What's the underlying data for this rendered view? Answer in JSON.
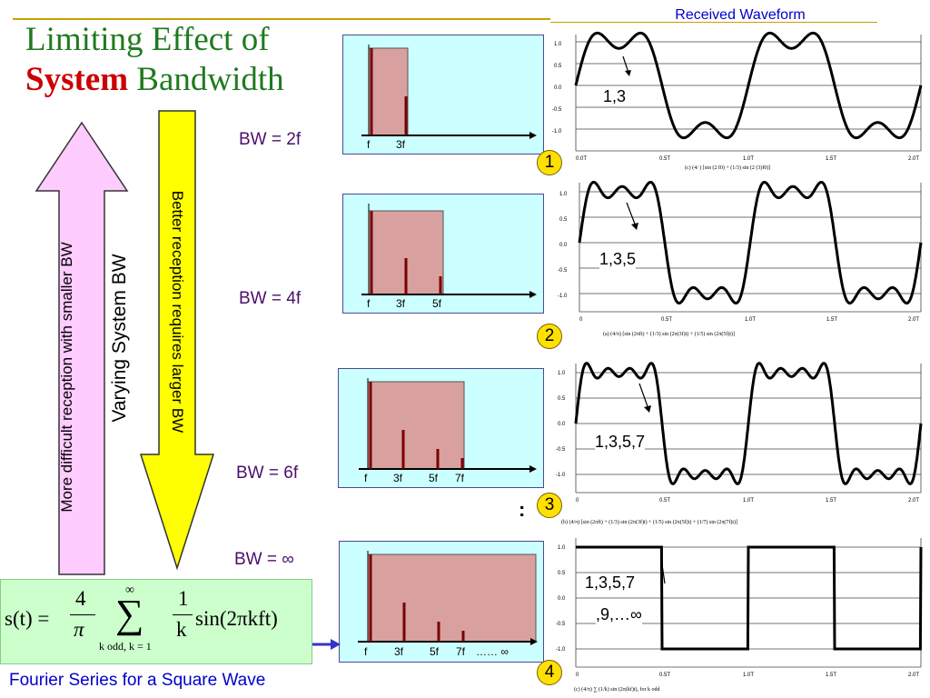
{
  "title": {
    "line1": "Limiting Effect of",
    "line2_bold": "System",
    "line2_rest": " Bandwidth"
  },
  "received_label": "Received Waveform",
  "arrows": {
    "left_text": "More difficult reception with smaller BW",
    "middle_text": "Varying System BW",
    "right_text": "Better reception requires larger BW",
    "left_color": "#ffccff",
    "right_color": "#ffff00"
  },
  "panels": [
    {
      "bw": "BW = 2f",
      "badge": "1",
      "harmonics": "1,3",
      "tick_labels": [
        "f",
        "3f"
      ],
      "y_ticks": [
        "1.0",
        "0.5",
        "0.0",
        "-0.5",
        "-1.0"
      ],
      "x_ticks": [
        "0.0T",
        "0.5T",
        "1.0T",
        "1.5T",
        "2.0T"
      ],
      "caption": "(c)  (4/   ) [sin (2  f0) + (1/3) sin (2  (3)f0)]"
    },
    {
      "bw": "BW = 4f",
      "badge": "2",
      "harmonics": "1,3,5",
      "tick_labels": [
        "f",
        "3f",
        "5f"
      ],
      "y_ticks": [
        "1.0",
        "0.5",
        "0.0",
        "-0.5",
        "-1.0"
      ],
      "x_ticks": [
        "0",
        "0.5T",
        "1.0T",
        "1.5T",
        "2.0T"
      ],
      "caption": "(a) (4/π) [sin (2πft) + (1/3) sin (2π(3f)t) + (1/5) sin (2π(5f)t)]"
    },
    {
      "bw": "BW = 6f",
      "badge": "3",
      "harmonics": "1,3,5,7",
      "tick_labels": [
        "f",
        "3f",
        "5f",
        "7f"
      ],
      "y_ticks": [
        "1.0",
        "0.5",
        "0.0",
        "-0.5",
        "-1.0"
      ],
      "x_ticks": [
        "0",
        "0.5T",
        "1.0T",
        "1.5T",
        "2.0T"
      ],
      "caption": "(b) (4/π) [sin (2πft) + (1/3) sin (2π(3f)t) + (1/5) sin (2π(5f)t) + (1/7) sin (2π(7f)t)]"
    },
    {
      "bw": "BW = ∞",
      "badge": "4",
      "harmonics_line1": "1,3,5,7",
      "harmonics_line2": ",9,…∞",
      "tick_labels": [
        "f",
        "3f",
        "5f",
        "7f",
        "…… ∞"
      ],
      "y_ticks": [
        "1.0",
        "0.5",
        "0.0",
        "-0.5",
        "-1.0"
      ],
      "x_ticks": [
        "0",
        "0.5T",
        "1.0T",
        "1.5T",
        "2.0T"
      ],
      "caption": "(c) (4/π) ∑ (1/k) sin (2π(kf)t),     for k odd"
    }
  ],
  "dots": ":",
  "formula": {
    "lhs": "s(t) = ",
    "frac_num": "4",
    "frac_den": "π",
    "sum_top": "∞",
    "sum_bottom": "k odd, k = 1",
    "inner_num": "1",
    "inner_den": "k",
    "func": "sin(2πkft)"
  },
  "footer": "Fourier Series for a Square Wave"
}
